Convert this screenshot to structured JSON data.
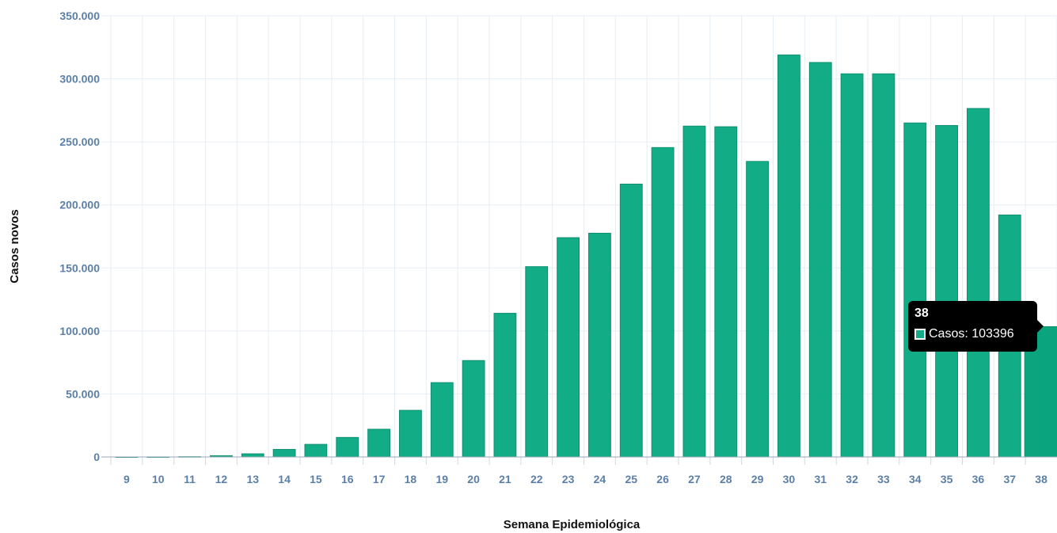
{
  "chart_data": {
    "type": "bar",
    "xlabel": "Semana Epidemiológica",
    "ylabel": "Casos novos",
    "categories": [
      "9",
      "10",
      "11",
      "12",
      "13",
      "14",
      "15",
      "16",
      "17",
      "18",
      "19",
      "20",
      "21",
      "22",
      "23",
      "24",
      "25",
      "26",
      "27",
      "28",
      "29",
      "30",
      "31",
      "32",
      "33",
      "34",
      "35",
      "36",
      "37",
      "38"
    ],
    "series": [
      {
        "name": "Casos",
        "values": [
          2,
          30,
          200,
          1000,
          2500,
          6000,
          10000,
          15500,
          22000,
          37000,
          59000,
          76500,
          114000,
          151000,
          174000,
          177500,
          216500,
          245500,
          262500,
          262000,
          234500,
          319000,
          313000,
          304000,
          304000,
          265000,
          263000,
          276500,
          192000,
          103396
        ]
      }
    ],
    "ylim": [
      0,
      350000
    ],
    "yticks": [
      "0",
      "50.000",
      "100.000",
      "150.000",
      "200.000",
      "250.000",
      "300.000",
      "350.000"
    ],
    "grid": true,
    "legend": "none",
    "colors": {
      "bar": "#12ad87",
      "bar_highlight": "#0aa57f",
      "bar_edge": "#0e8f70",
      "grid": "#e6eef5",
      "tick_text": "#5b7fa6"
    },
    "tooltip": {
      "title": "38",
      "label": "Casos: 103396"
    }
  }
}
